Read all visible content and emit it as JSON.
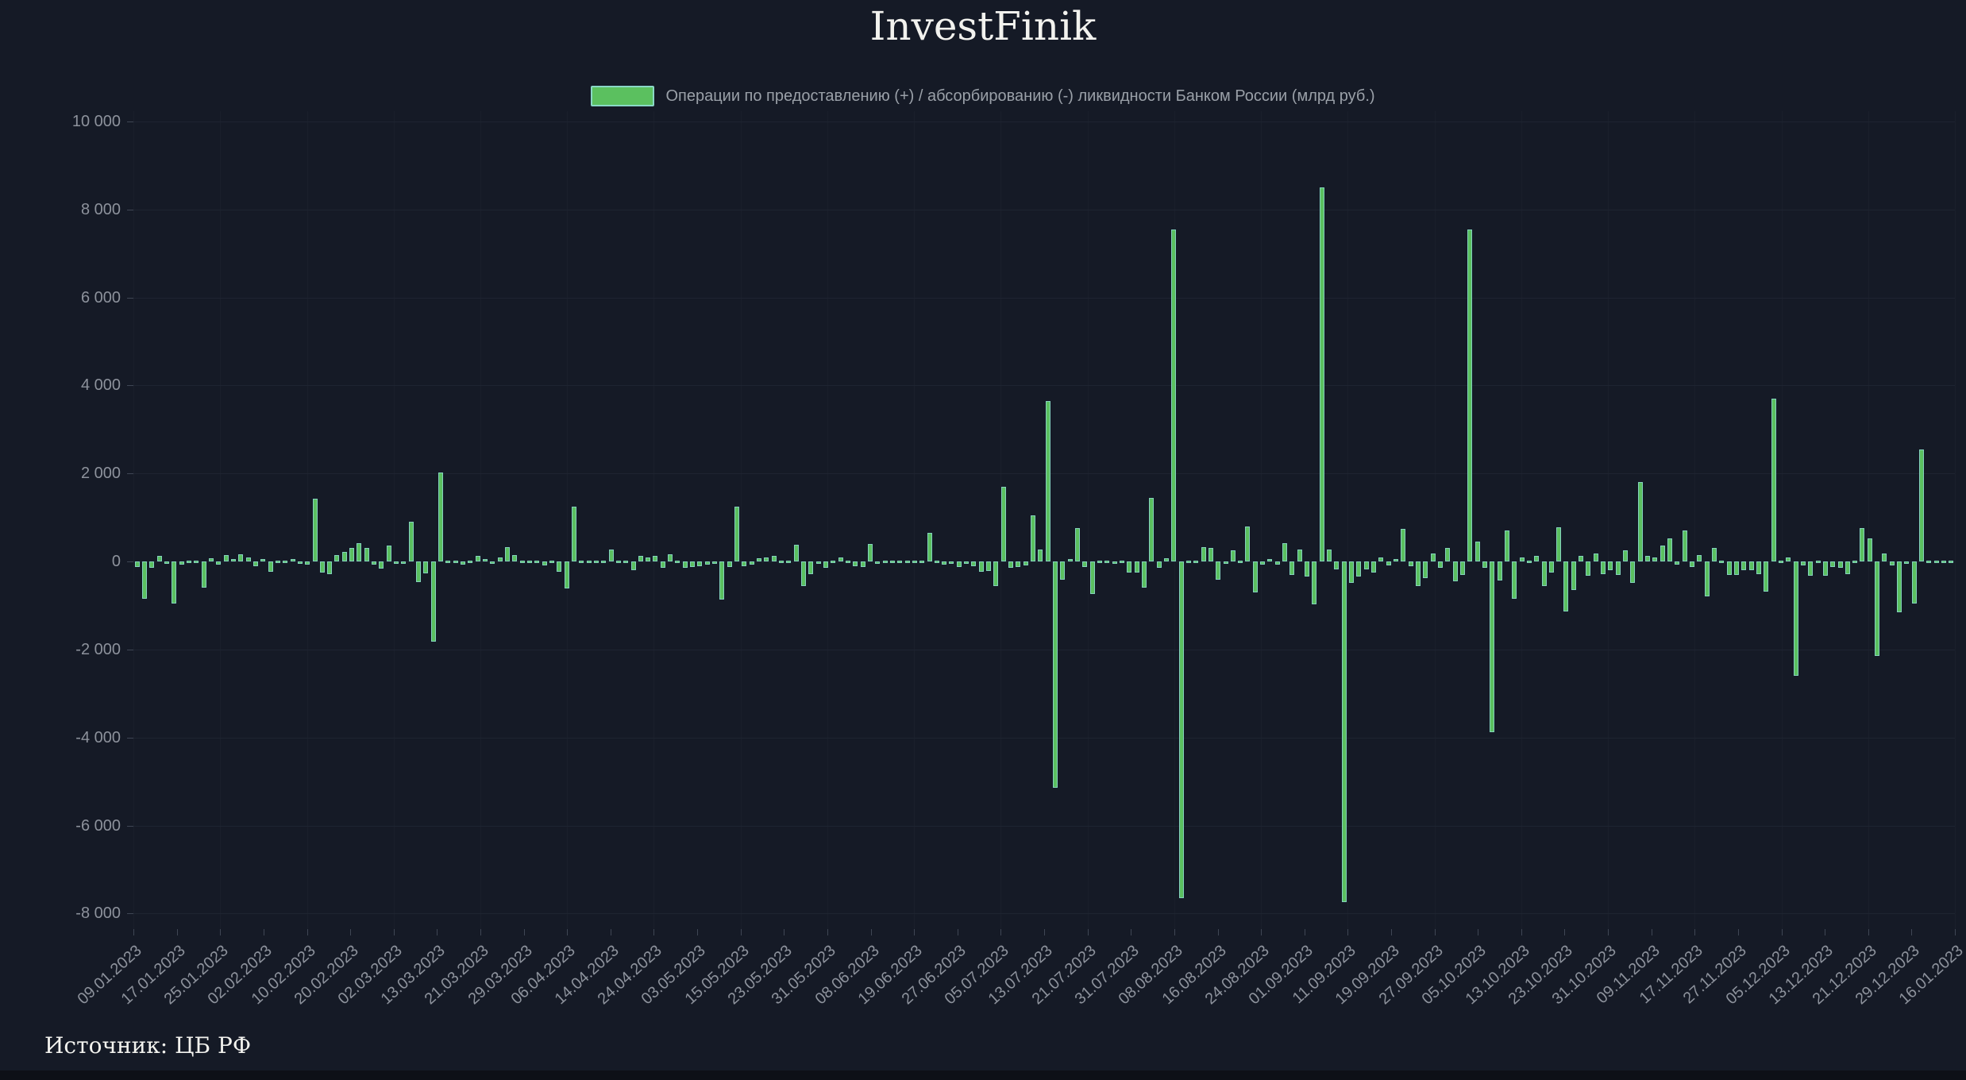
{
  "title": "InvestFinik",
  "legend": {
    "label": "Операции по предоставлению (+) / абсорбированию (-) ликвидности Банком России (млрд руб.)",
    "swatch_fill": "#5bc05f",
    "swatch_border": "#8ad8c6"
  },
  "source": "Источник: ЦБ РФ",
  "colors": {
    "background": "#151a26",
    "bar_fill": "#5bc05f",
    "bar_border": "#83d2bd",
    "axis_text": "#8d929c"
  },
  "chart_data": {
    "type": "bar",
    "title": "InvestFinik",
    "ylabel": "млрд руб.",
    "legend_position": "top",
    "grid": true,
    "ylim": [
      -8353,
      10230
    ],
    "ytick_values": [
      10000,
      8000,
      6000,
      4000,
      2000,
      0,
      -2000,
      -4000,
      -6000,
      -8000
    ],
    "ytick_labels": [
      "10 000",
      "8 000",
      "6 000",
      "4 000",
      "2 000",
      "0",
      "-2 000",
      "-4 000",
      "-6 000",
      "-8 000"
    ],
    "x_tick_labels": [
      "09.01.2023",
      "17.01.2023",
      "25.01.2023",
      "02.02.2023",
      "10.02.2023",
      "20.02.2023",
      "02.03.2023",
      "13.03.2023",
      "21.03.2023",
      "29.03.2023",
      "06.04.2023",
      "14.04.2023",
      "24.04.2023",
      "03.05.2023",
      "15.05.2023",
      "23.05.2023",
      "31.05.2023",
      "08.06.2023",
      "19.06.2023",
      "27.06.2023",
      "05.07.2023",
      "13.07.2023",
      "21.07.2023",
      "31.07.2023",
      "08.08.2023",
      "16.08.2023",
      "24.08.2023",
      "01.09.2023",
      "11.09.2023",
      "19.09.2023",
      "27.09.2023",
      "05.10.2023",
      "13.10.2023",
      "23.10.2023",
      "31.10.2023",
      "09.11.2023",
      "17.11.2023",
      "27.11.2023",
      "05.12.2023",
      "13.12.2023",
      "21.12.2023",
      "29.12.2023",
      "16.01.2023"
    ],
    "series": [
      {
        "name": "Операции по предоставлению (+) / абсорбированию (-) ликвидности Банком России (млрд руб.)",
        "values": [
          -120,
          -850,
          -150,
          120,
          -60,
          -950,
          -80,
          40,
          -30,
          -600,
          80,
          -80,
          150,
          50,
          160,
          100,
          -100,
          60,
          -240,
          30,
          -40,
          50,
          -60,
          -80,
          1430,
          -250,
          -280,
          150,
          215,
          300,
          420,
          310,
          -70,
          -170,
          360,
          -60,
          -50,
          900,
          -470,
          -265,
          -1830,
          2020,
          0,
          -30,
          -80,
          40,
          120,
          60,
          -60,
          90,
          320,
          150,
          -40,
          30,
          -30,
          -90,
          40,
          -230,
          -620,
          1240,
          -40,
          -30,
          30,
          0,
          280,
          -40,
          0,
          -200,
          120,
          90,
          130,
          -140,
          160,
          0,
          -150,
          -120,
          -100,
          -80,
          -60,
          -870,
          -120,
          1240,
          -100,
          -80,
          80,
          90,
          130,
          -30,
          0,
          380,
          -560,
          -280,
          -60,
          -150,
          40,
          90,
          -40,
          -110,
          -130,
          400,
          -50,
          0,
          -40,
          -30,
          0,
          -40,
          0,
          650,
          0,
          -80,
          -60,
          -130,
          -50,
          -110,
          -230,
          -220,
          -550,
          1700,
          -150,
          -120,
          -90,
          1050,
          280,
          3650,
          -5150,
          -420,
          60,
          750,
          -120,
          -730,
          40,
          30,
          -60,
          0,
          -250,
          -250,
          -600,
          1450,
          -150,
          80,
          7550,
          -7650,
          30,
          -40,
          320,
          300,
          -420,
          -60,
          250,
          -30,
          800,
          -700,
          -80,
          60,
          -80,
          420,
          -300,
          280,
          -350,
          -980,
          8500,
          270,
          -180,
          -7730,
          -490,
          -350,
          -180,
          -250,
          100,
          -90,
          60,
          740,
          -100,
          -560,
          -380,
          180,
          -150,
          300,
          -450,
          -300,
          7550,
          450,
          -150,
          -3880,
          -430,
          700,
          -850,
          100,
          40,
          120,
          -550,
          -250,
          780,
          -1130,
          -650,
          120,
          -330,
          180,
          -280,
          -200,
          -300,
          260,
          -480,
          1800,
          120,
          100,
          370,
          530,
          -80,
          700,
          -120,
          150,
          -800,
          300,
          -40,
          -300,
          -300,
          -200,
          -200,
          -280,
          -680,
          3700,
          0,
          90,
          -2600,
          -90,
          -330,
          -20,
          -320,
          -130,
          -140,
          -280,
          0,
          750,
          520,
          -2150,
          190,
          -90,
          -1150,
          -60,
          -950,
          2550,
          -30,
          0,
          -40,
          -30
        ]
      }
    ]
  }
}
